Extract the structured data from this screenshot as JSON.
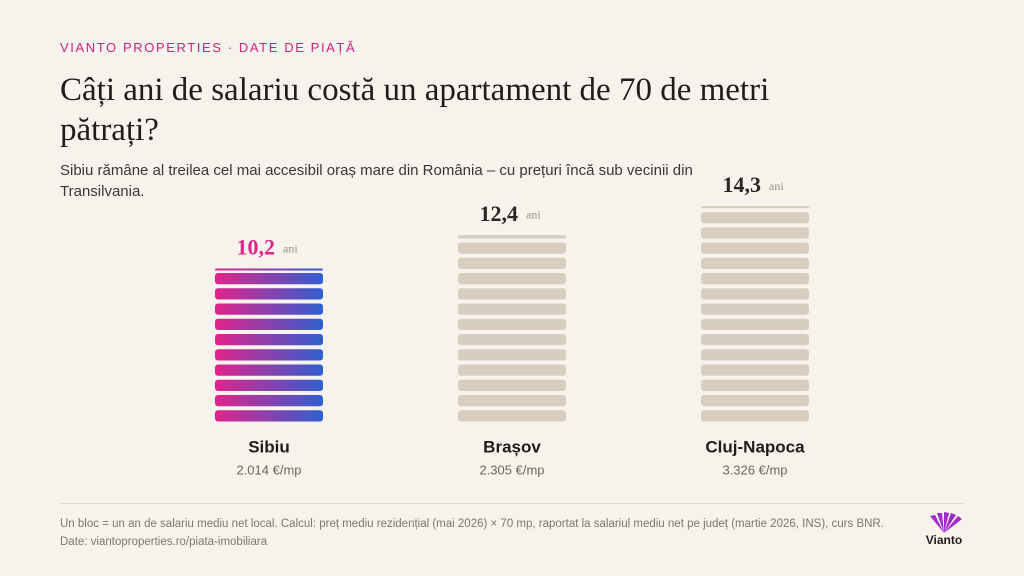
{
  "brand": "VIANTO PROPERTIES · DATE DE PIAȚĂ",
  "chart_data": {
    "type": "blocks",
    "title": "Câți ani de salariu costă un apartament de 70 de metri pătrați?",
    "subtitle": "Sibiu rămâne al treilea cel mai accesibil oraș mare din România – cu prețuri încă sub vecinii din Transilvania.",
    "categories": [
      "Sibiu",
      "Brașov",
      "Cluj-Napoca"
    ],
    "values": [
      10.2,
      12.4,
      14.3
    ],
    "value_labels": [
      "10,2",
      "12,4",
      "14,3"
    ],
    "unit": "ani",
    "price_labels": [
      "2.014 €/mp",
      "2.305 €/mp",
      "3.326 €/mp"
    ],
    "colors": [
      "gradient",
      "#d7cebf",
      "#d7cebf"
    ],
    "highlight_gradient": [
      "#e2238a",
      "#2f5fcf"
    ]
  },
  "footnote": "Un bloc = un an de salariu mediu net local. Calcul: preț mediu rezidențial (mai 2026) × 70 mp, raportat la salariul mediu net pe județ (martie 2026, INS), curs BNR. Date: viantoproperties.ro/piata-imobiliara",
  "logo": "Vianto"
}
